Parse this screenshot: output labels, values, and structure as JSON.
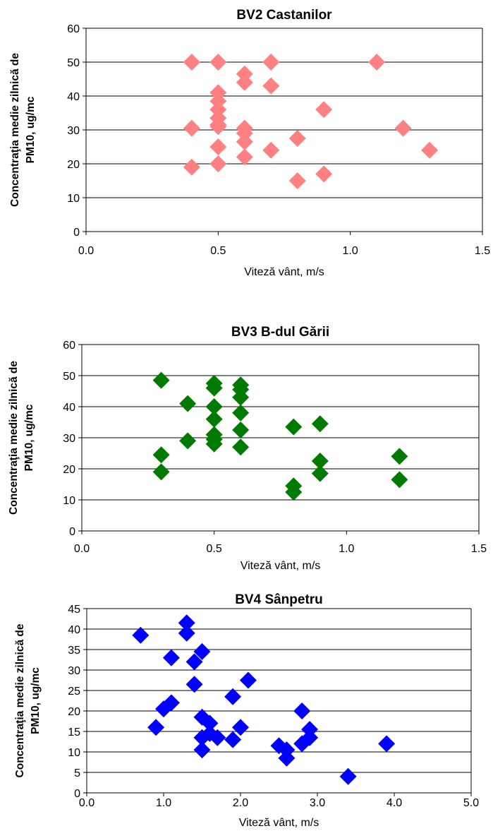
{
  "chart_data": [
    {
      "type": "scatter",
      "title": "BV2 Castanilor",
      "xlabel": "Viteză vânt, m/s",
      "ylabel": [
        "Concentraţia medie zilnică de",
        "PM10, ug/mc"
      ],
      "xlim": [
        0,
        1.5
      ],
      "ylim": [
        0,
        60
      ],
      "x_ticks": [
        "0.0",
        "0.5",
        "1.0",
        "1.5"
      ],
      "y_ticks": [
        "0",
        "10",
        "20",
        "30",
        "40",
        "50",
        "60"
      ],
      "grid": true,
      "color": "#ff8080",
      "x": [
        0.4,
        0.5,
        0.6,
        0.6,
        0.7,
        0.7,
        1.1,
        0.5,
        0.5,
        0.5,
        0.5,
        0.5,
        0.5,
        0.4,
        0.6,
        0.6,
        0.6,
        0.9,
        1.2,
        0.8,
        0.5,
        0.7,
        1.3,
        0.6,
        0.5,
        0.4,
        0.9,
        0.8
      ],
      "y": [
        50,
        50,
        46.5,
        44,
        50,
        43,
        50,
        41,
        38.5,
        36,
        33.5,
        31.5,
        31,
        30.5,
        30.5,
        29,
        26.5,
        36,
        30.5,
        27.5,
        25,
        24,
        24,
        22,
        20,
        19,
        17,
        15
      ]
    },
    {
      "type": "scatter",
      "title": "BV3 B-dul Gării",
      "xlabel": "Viteză vânt, m/s",
      "ylabel": [
        "Concentraţia medie zilnică de",
        "PM10, ug/mc"
      ],
      "xlim": [
        0,
        1.5
      ],
      "ylim": [
        0,
        60
      ],
      "x_ticks": [
        "0.0",
        "0.5",
        "1.0",
        "1.5"
      ],
      "y_ticks": [
        "0",
        "10",
        "20",
        "30",
        "40",
        "50",
        "60"
      ],
      "grid": true,
      "color": "#007a00",
      "x": [
        0.3,
        0.5,
        0.5,
        0.6,
        0.6,
        0.6,
        0.4,
        0.5,
        0.6,
        0.5,
        0.8,
        0.9,
        0.6,
        0.5,
        0.4,
        0.5,
        0.5,
        0.6,
        0.3,
        1.2,
        0.9,
        0.9,
        0.3,
        1.2,
        0.8,
        0.8
      ],
      "y": [
        48.5,
        47.5,
        46,
        47,
        45.5,
        43,
        41,
        40,
        38,
        36,
        33.5,
        34.5,
        32.5,
        31,
        29,
        29.5,
        28,
        27,
        24.5,
        24,
        22.5,
        18.5,
        19,
        16.5,
        14.5,
        12.5
      ]
    },
    {
      "type": "scatter",
      "title": "BV4 Sânpetru",
      "xlabel": "Viteză vânt, m/s",
      "ylabel": [
        "Concentraţia medie zilnică de",
        "PM10, ug/mc"
      ],
      "xlim": [
        0,
        5
      ],
      "ylim": [
        0,
        45
      ],
      "x_ticks": [
        "0.0",
        "1.0",
        "2.0",
        "3.0",
        "4.0",
        "5.0"
      ],
      "y_ticks": [
        "0",
        "5",
        "10",
        "15",
        "20",
        "25",
        "30",
        "35",
        "40",
        "45"
      ],
      "grid": true,
      "color": "#0000ff",
      "x": [
        1.3,
        1.3,
        0.7,
        1.5,
        1.4,
        1.1,
        1.4,
        2.1,
        1.9,
        1.1,
        2.8,
        1.0,
        0.9,
        1.5,
        1.6,
        2.0,
        1.6,
        2.9,
        1.5,
        1.7,
        1.9,
        2.9,
        2.8,
        2.5,
        1.5,
        2.6,
        3.9,
        2.6,
        3.4
      ],
      "y": [
        41.5,
        39,
        38.5,
        34.5,
        32,
        33,
        26.5,
        27.5,
        23.5,
        22,
        20,
        20.5,
        16,
        18.5,
        17,
        16,
        14.5,
        15.5,
        13.5,
        13.5,
        13,
        13.5,
        12,
        11.5,
        10.5,
        10.5,
        12,
        8.5,
        4
      ]
    }
  ]
}
